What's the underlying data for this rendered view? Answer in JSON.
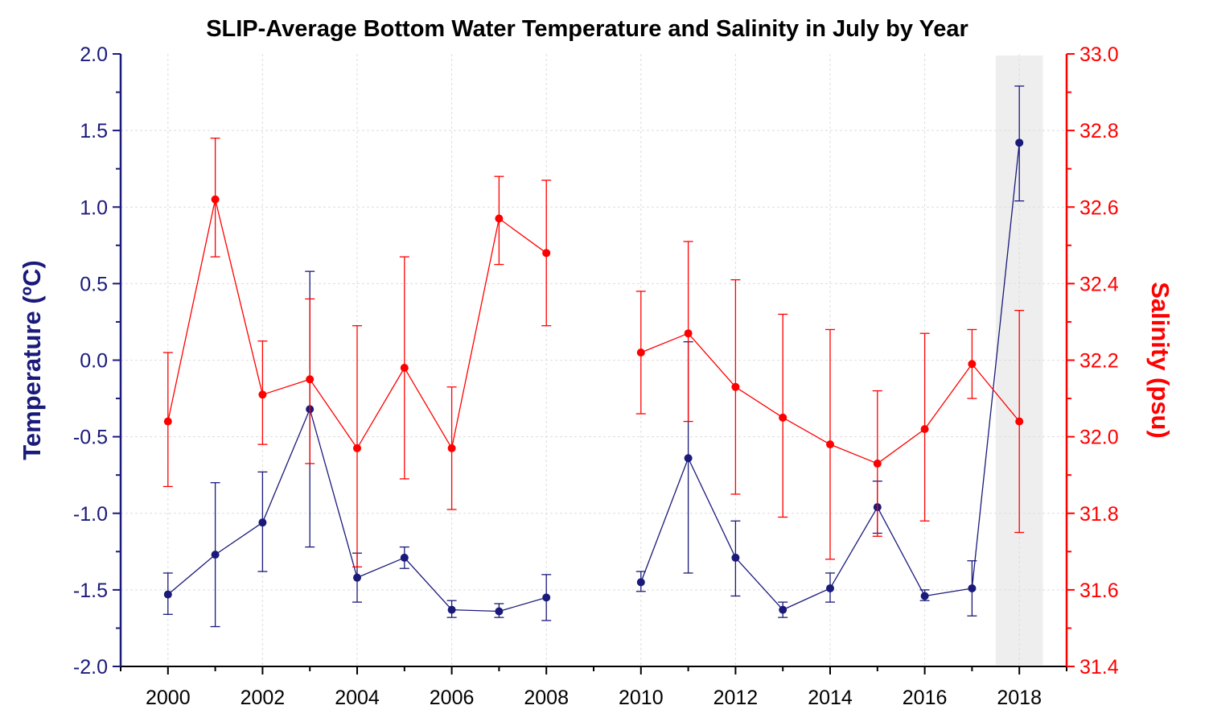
{
  "chart_data": {
    "type": "line",
    "title": "SLIP-Average Bottom Water Temperature and Salinity in July by Year",
    "xlabel": "",
    "x_ticks": [
      "2000",
      "2002",
      "2004",
      "2006",
      "2008",
      "2010",
      "2012",
      "2014",
      "2016",
      "2018"
    ],
    "xlim": [
      1999,
      2019
    ],
    "highlight_year": 2018,
    "grid": true,
    "left_axis": {
      "label": "Temperature (ºC)",
      "ylim": [
        -2.0,
        2.0
      ],
      "ticks": [
        "2.0",
        "1.5",
        "1.0",
        "0.5",
        "0.0",
        "-0.5",
        "-1.0",
        "-1.5",
        "-2.0"
      ],
      "color": "#1a1a7a"
    },
    "right_axis": {
      "label": "Salinity (psu)",
      "ylim": [
        31.4,
        33.0
      ],
      "ticks": [
        "33.0",
        "32.8",
        "32.6",
        "32.4",
        "32.2",
        "32.0",
        "31.8",
        "31.6",
        "31.4"
      ],
      "color": "#ff0000"
    },
    "series": [
      {
        "axis": "left",
        "color": "#1a1a7a",
        "points": [
          {
            "x": 2000,
            "y": -1.53,
            "lo": -1.66,
            "hi": -1.39
          },
          {
            "x": 2001,
            "y": -1.27,
            "lo": -1.74,
            "hi": -0.8
          },
          {
            "x": 2002,
            "y": -1.06,
            "lo": -1.38,
            "hi": -0.73
          },
          {
            "x": 2003,
            "y": -0.32,
            "lo": -1.22,
            "hi": 0.58
          },
          {
            "x": 2004,
            "y": -1.42,
            "lo": -1.58,
            "hi": -1.26
          },
          {
            "x": 2005,
            "y": -1.29,
            "lo": -1.36,
            "hi": -1.22
          },
          {
            "x": 2006,
            "y": -1.63,
            "lo": -1.68,
            "hi": -1.57
          },
          {
            "x": 2007,
            "y": -1.64,
            "lo": -1.68,
            "hi": -1.59
          },
          {
            "x": 2008,
            "y": -1.55,
            "lo": -1.7,
            "hi": -1.4
          },
          {
            "x": 2010,
            "y": -1.45,
            "lo": -1.51,
            "hi": -1.38
          },
          {
            "x": 2011,
            "y": -0.64,
            "lo": -1.39,
            "hi": 0.12
          },
          {
            "x": 2012,
            "y": -1.29,
            "lo": -1.54,
            "hi": -1.05
          },
          {
            "x": 2013,
            "y": -1.63,
            "lo": -1.68,
            "hi": -1.58
          },
          {
            "x": 2014,
            "y": -1.49,
            "lo": -1.58,
            "hi": -1.39
          },
          {
            "x": 2015,
            "y": -0.96,
            "lo": -1.13,
            "hi": -0.79
          },
          {
            "x": 2016,
            "y": -1.54,
            "lo": -1.57,
            "hi": -1.5
          },
          {
            "x": 2017,
            "y": -1.49,
            "lo": -1.67,
            "hi": -1.31
          },
          {
            "x": 2018,
            "y": 1.42,
            "lo": 1.04,
            "hi": 1.79
          }
        ]
      },
      {
        "axis": "right",
        "color": "#ff0000",
        "points": [
          {
            "x": 2000,
            "y": 32.04,
            "lo": 31.87,
            "hi": 32.22
          },
          {
            "x": 2001,
            "y": 32.62,
            "lo": 32.47,
            "hi": 32.78
          },
          {
            "x": 2002,
            "y": 32.11,
            "lo": 31.98,
            "hi": 32.25
          },
          {
            "x": 2003,
            "y": 32.15,
            "lo": 31.93,
            "hi": 32.36
          },
          {
            "x": 2004,
            "y": 31.97,
            "lo": 31.66,
            "hi": 32.29
          },
          {
            "x": 2005,
            "y": 32.18,
            "lo": 31.89,
            "hi": 32.47
          },
          {
            "x": 2006,
            "y": 31.97,
            "lo": 31.81,
            "hi": 32.13
          },
          {
            "x": 2007,
            "y": 32.57,
            "lo": 32.45,
            "hi": 32.68
          },
          {
            "x": 2008,
            "y": 32.48,
            "lo": 32.29,
            "hi": 32.67
          },
          {
            "x": 2010,
            "y": 32.22,
            "lo": 32.06,
            "hi": 32.38
          },
          {
            "x": 2011,
            "y": 32.27,
            "lo": 32.04,
            "hi": 32.51
          },
          {
            "x": 2012,
            "y": 32.13,
            "lo": 31.85,
            "hi": 32.41
          },
          {
            "x": 2013,
            "y": 32.05,
            "lo": 31.79,
            "hi": 32.32
          },
          {
            "x": 2014,
            "y": 31.98,
            "lo": 31.68,
            "hi": 32.28
          },
          {
            "x": 2015,
            "y": 31.93,
            "lo": 31.74,
            "hi": 32.12
          },
          {
            "x": 2016,
            "y": 32.02,
            "lo": 31.78,
            "hi": 32.27
          },
          {
            "x": 2017,
            "y": 32.19,
            "lo": 32.1,
            "hi": 32.28
          },
          {
            "x": 2018,
            "y": 32.04,
            "lo": 31.75,
            "hi": 32.33
          }
        ]
      }
    ]
  }
}
